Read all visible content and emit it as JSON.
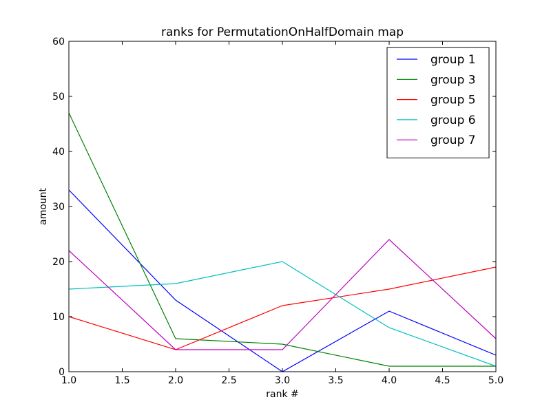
{
  "chart_data": {
    "type": "line",
    "title": "ranks for PermutationOnHalfDomain map",
    "xlabel": "rank #",
    "ylabel": "amount",
    "xlim": [
      1.0,
      5.0
    ],
    "ylim": [
      0,
      60
    ],
    "xticks": [
      1.0,
      1.5,
      2.0,
      2.5,
      3.0,
      3.5,
      4.0,
      4.5,
      5.0
    ],
    "xtick_labels": [
      "1.0",
      "1.5",
      "2.0",
      "2.5",
      "3.0",
      "3.5",
      "4.0",
      "4.5",
      "5.0"
    ],
    "yticks": [
      0,
      10,
      20,
      30,
      40,
      50,
      60
    ],
    "ytick_labels": [
      "0",
      "10",
      "20",
      "30",
      "40",
      "50",
      "60"
    ],
    "grid": false,
    "legend_position": "top-right",
    "x": [
      1,
      2,
      3,
      4,
      5
    ],
    "series": [
      {
        "name": "group 1",
        "color": "#0000ff",
        "values": [
          33,
          13,
          0,
          11,
          3
        ]
      },
      {
        "name": "group 3",
        "color": "#008000",
        "values": [
          47,
          6,
          5,
          1,
          1
        ]
      },
      {
        "name": "group 5",
        "color": "#ff0000",
        "values": [
          10,
          4,
          12,
          15,
          19
        ]
      },
      {
        "name": "group 6",
        "color": "#00bfbf",
        "values": [
          15,
          16,
          20,
          8,
          1
        ]
      },
      {
        "name": "group 7",
        "color": "#bf00bf",
        "values": [
          22,
          4,
          4,
          24,
          6
        ]
      }
    ]
  }
}
